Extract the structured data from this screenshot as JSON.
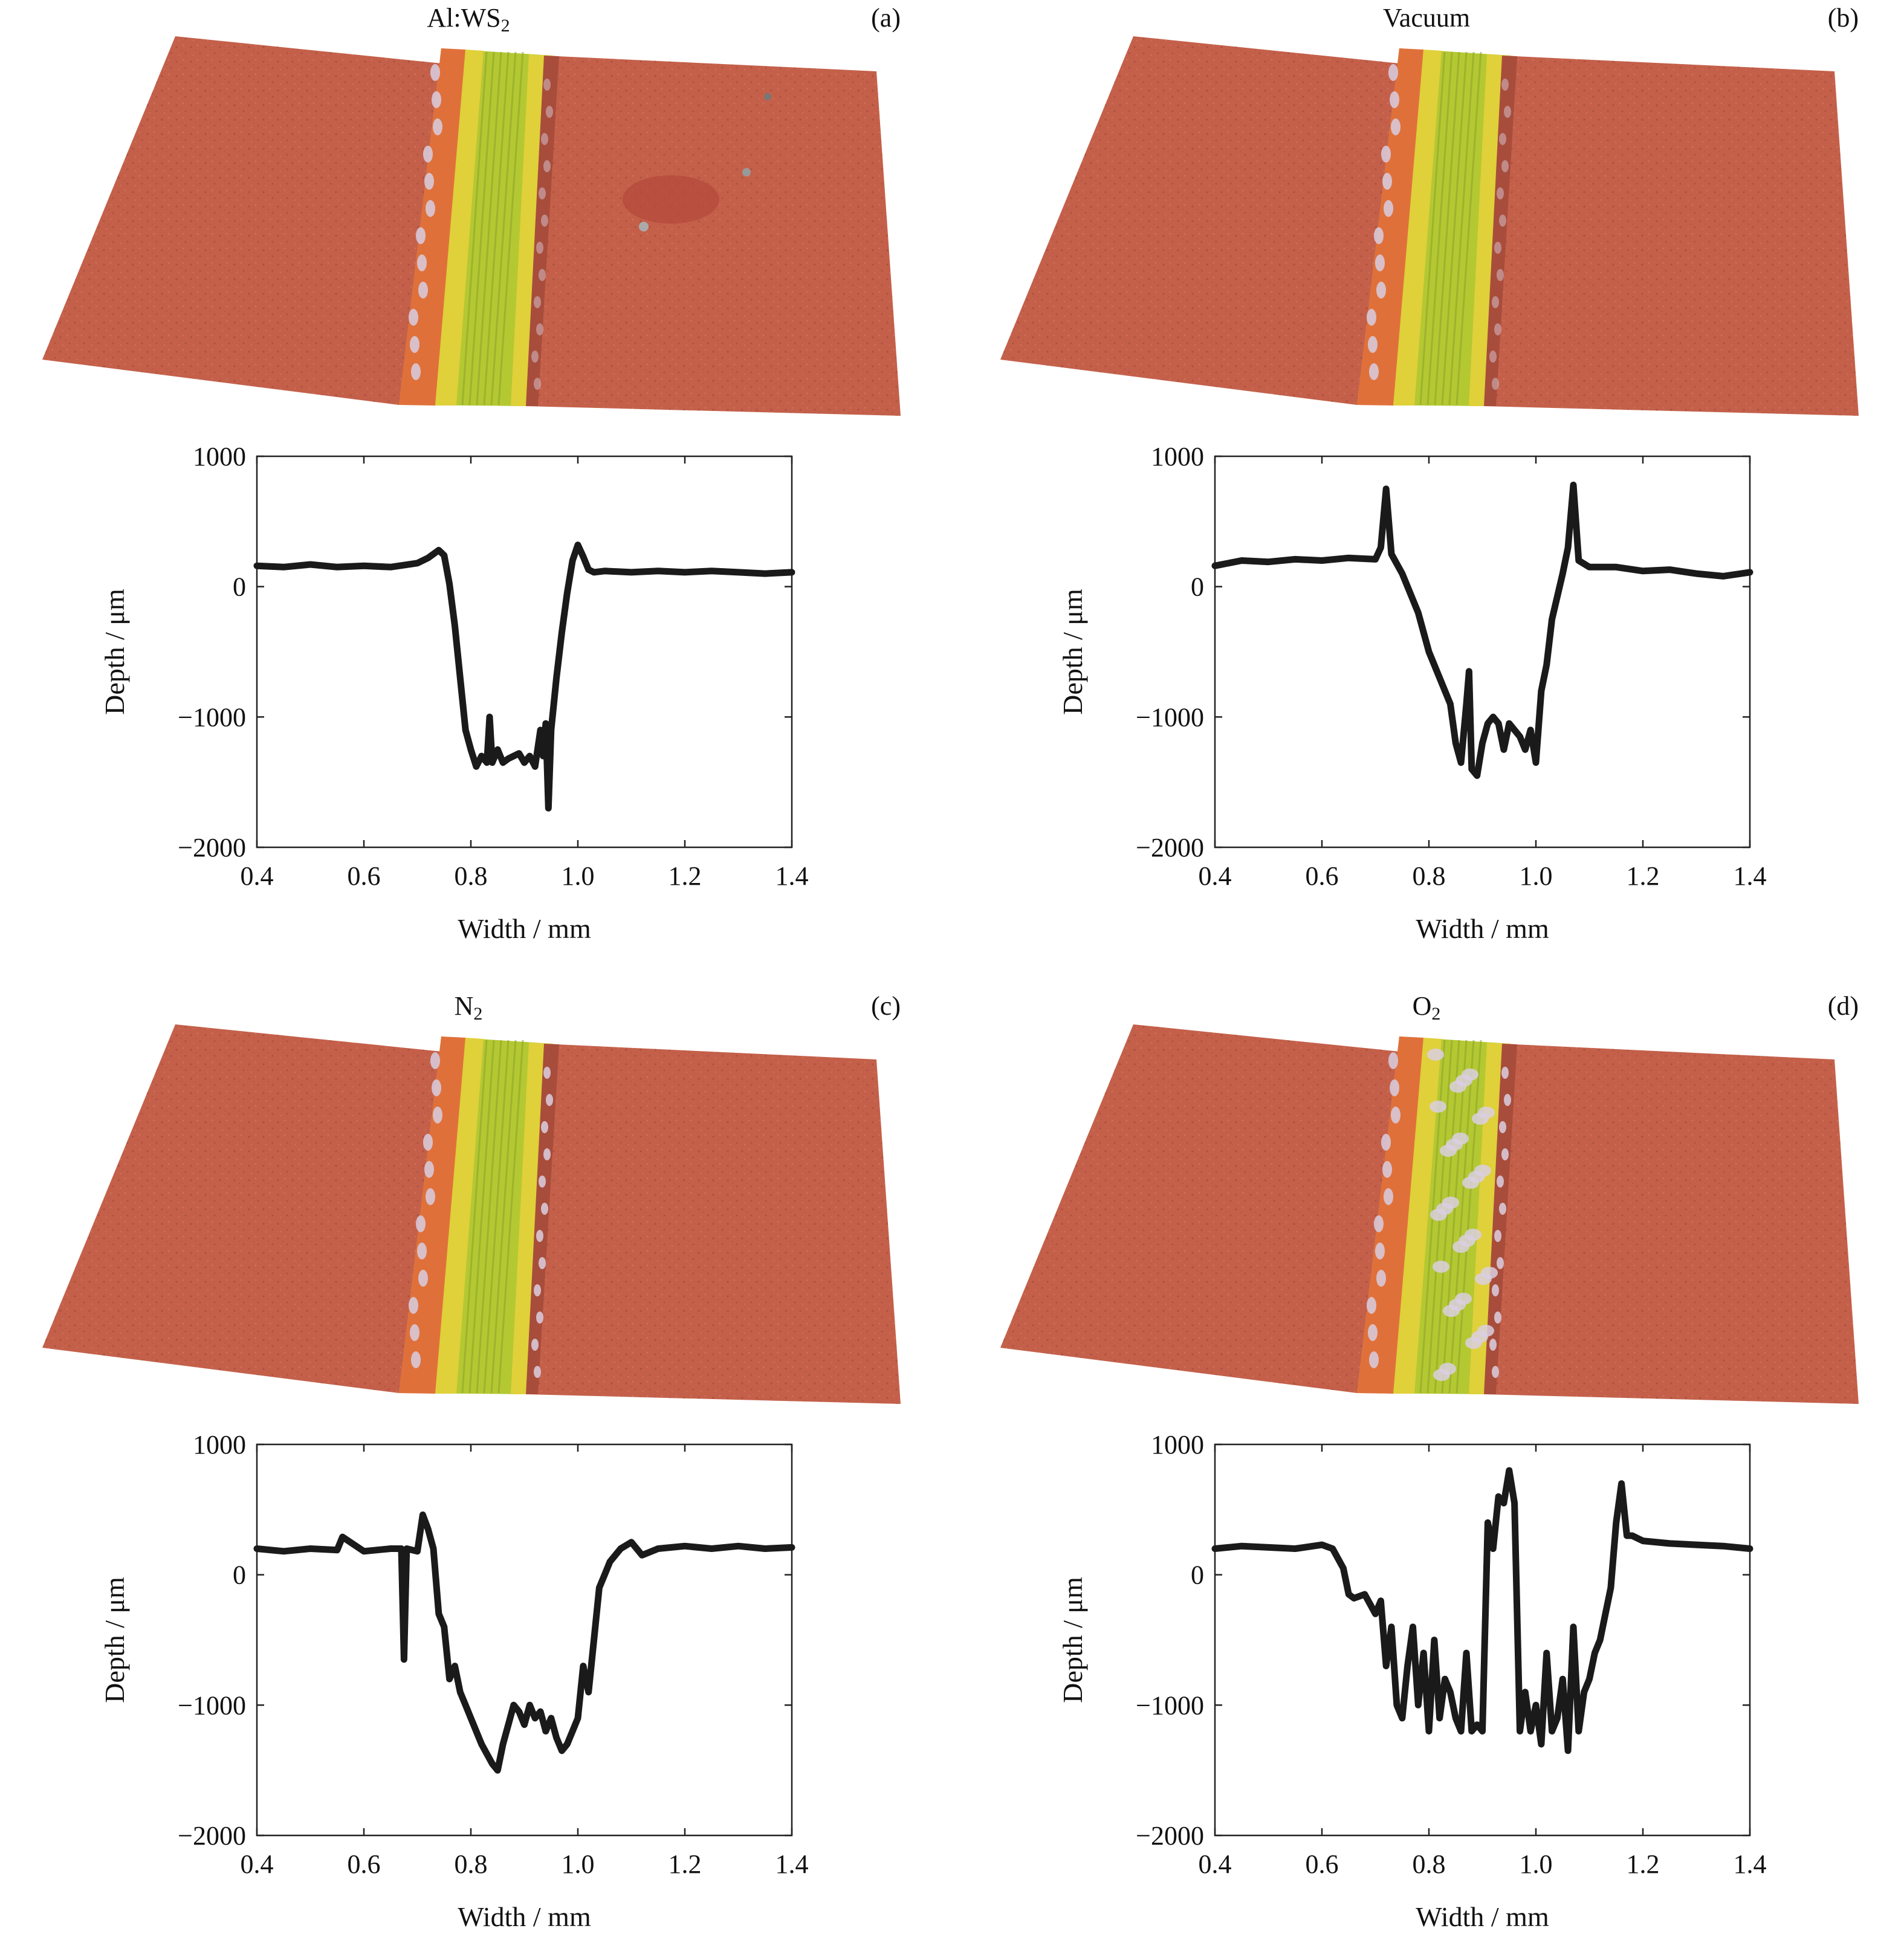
{
  "panels": [
    {
      "id": "a",
      "letter": "(a)",
      "title_main": "Al:WS",
      "title_sub": "2",
      "title_tail": "",
      "surface": {
        "features": "smooth scratch track with a few small dark pits on the right side"
      }
    },
    {
      "id": "b",
      "letter": "(b)",
      "title_main": "Vacuum",
      "title_sub": "",
      "title_tail": "",
      "surface": {
        "features": "scratch track with sharp raised edges and fine surface scratches"
      }
    },
    {
      "id": "c",
      "letter": "(c)",
      "title_main": "N",
      "title_sub": "2",
      "title_tail": "",
      "surface": {
        "features": "wide scratch track with debris along both edges"
      }
    },
    {
      "id": "d",
      "letter": "(d)",
      "title_main": "O",
      "title_sub": "2",
      "title_tail": "",
      "surface": {
        "features": "rough scratch track with heavy white debris and pile-up"
      }
    }
  ],
  "colors": {
    "surface_red": "#c4604a",
    "surface_dark": "#a84d3b",
    "track_green": "#b4c832",
    "track_yellow": "#e0d03a",
    "track_orange": "#e0703a",
    "debris": "#d8c8d8",
    "line": "#1a1a1a"
  },
  "chart_data": [
    {
      "panel": "a",
      "type": "line",
      "xlabel": "Width / mm",
      "ylabel": "Depth / μm",
      "xlim": [
        0.4,
        1.4
      ],
      "ylim": [
        -2000,
        1000
      ],
      "xticks": [
        "0.4",
        "0.6",
        "0.8",
        "1.0",
        "1.2",
        "1.4"
      ],
      "yticks": [
        "1000",
        "0",
        "−1000",
        "−2000"
      ],
      "series": [
        {
          "x": [
            0.4,
            0.45,
            0.5,
            0.55,
            0.6,
            0.65,
            0.7,
            0.72,
            0.74,
            0.75,
            0.76,
            0.77,
            0.78,
            0.79,
            0.8,
            0.81,
            0.82,
            0.83,
            0.835,
            0.84,
            0.85,
            0.86,
            0.87,
            0.88,
            0.89,
            0.9,
            0.91,
            0.92,
            0.93,
            0.935,
            0.94,
            0.945,
            0.95,
            0.96,
            0.97,
            0.98,
            0.99,
            1.0,
            1.01,
            1.02,
            1.03,
            1.05,
            1.1,
            1.15,
            1.2,
            1.25,
            1.3,
            1.35,
            1.4
          ],
          "y": [
            160,
            150,
            170,
            150,
            160,
            150,
            180,
            220,
            280,
            240,
            20,
            -300,
            -700,
            -1100,
            -1250,
            -1380,
            -1300,
            -1350,
            -1000,
            -1350,
            -1250,
            -1350,
            -1320,
            -1300,
            -1280,
            -1350,
            -1300,
            -1380,
            -1100,
            -1300,
            -1050,
            -1700,
            -1100,
            -700,
            -350,
            -50,
            200,
            320,
            230,
            130,
            110,
            120,
            110,
            120,
            110,
            120,
            110,
            100,
            110
          ]
        }
      ]
    },
    {
      "panel": "b",
      "type": "line",
      "xlabel": "Width / mm",
      "ylabel": "Depth / μm",
      "xlim": [
        0.4,
        1.4
      ],
      "ylim": [
        -2000,
        1000
      ],
      "xticks": [
        "0.4",
        "0.6",
        "0.8",
        "1.0",
        "1.2",
        "1.4"
      ],
      "yticks": [
        "1000",
        "0",
        "−1000",
        "−2000"
      ],
      "series": [
        {
          "x": [
            0.4,
            0.45,
            0.5,
            0.55,
            0.6,
            0.65,
            0.7,
            0.71,
            0.72,
            0.73,
            0.75,
            0.78,
            0.8,
            0.82,
            0.84,
            0.85,
            0.86,
            0.87,
            0.875,
            0.88,
            0.89,
            0.9,
            0.91,
            0.92,
            0.93,
            0.94,
            0.95,
            0.96,
            0.97,
            0.98,
            0.99,
            1.0,
            1.01,
            1.02,
            1.03,
            1.05,
            1.06,
            1.07,
            1.08,
            1.1,
            1.15,
            1.2,
            1.25,
            1.3,
            1.35,
            1.4
          ],
          "y": [
            160,
            200,
            190,
            210,
            200,
            220,
            210,
            300,
            750,
            250,
            100,
            -200,
            -500,
            -700,
            -900,
            -1200,
            -1350,
            -900,
            -650,
            -1400,
            -1450,
            -1200,
            -1050,
            -1000,
            -1050,
            -1250,
            -1050,
            -1100,
            -1150,
            -1250,
            -1100,
            -1350,
            -800,
            -600,
            -250,
            100,
            300,
            780,
            200,
            150,
            150,
            120,
            130,
            100,
            80,
            110
          ]
        }
      ]
    },
    {
      "panel": "c",
      "type": "line",
      "xlabel": "Width / mm",
      "ylabel": "Depth / μm",
      "xlim": [
        0.4,
        1.4
      ],
      "ylim": [
        -2000,
        1000
      ],
      "xticks": [
        "0.4",
        "0.6",
        "0.8",
        "1.0",
        "1.2",
        "1.4"
      ],
      "yticks": [
        "1000",
        "0",
        "−1000",
        "−2000"
      ],
      "series": [
        {
          "x": [
            0.4,
            0.45,
            0.5,
            0.55,
            0.56,
            0.6,
            0.65,
            0.67,
            0.675,
            0.68,
            0.7,
            0.71,
            0.72,
            0.73,
            0.74,
            0.75,
            0.76,
            0.77,
            0.78,
            0.79,
            0.8,
            0.82,
            0.84,
            0.85,
            0.86,
            0.87,
            0.88,
            0.89,
            0.9,
            0.91,
            0.92,
            0.93,
            0.94,
            0.95,
            0.96,
            0.97,
            0.98,
            0.99,
            1.0,
            1.01,
            1.02,
            1.03,
            1.04,
            1.05,
            1.06,
            1.08,
            1.1,
            1.12,
            1.15,
            1.2,
            1.25,
            1.3,
            1.35,
            1.4
          ],
          "y": [
            200,
            180,
            200,
            190,
            290,
            180,
            200,
            200,
            -650,
            200,
            180,
            460,
            350,
            200,
            -300,
            -400,
            -800,
            -700,
            -900,
            -1000,
            -1100,
            -1300,
            -1450,
            -1500,
            -1300,
            -1150,
            -1000,
            -1050,
            -1150,
            -1000,
            -1100,
            -1050,
            -1200,
            -1100,
            -1250,
            -1350,
            -1300,
            -1200,
            -1100,
            -700,
            -900,
            -500,
            -100,
            0,
            100,
            200,
            250,
            150,
            200,
            220,
            200,
            220,
            200,
            210
          ]
        }
      ]
    },
    {
      "panel": "d",
      "type": "line",
      "xlabel": "Width / mm",
      "ylabel": "Depth / μm",
      "xlim": [
        0.4,
        1.4
      ],
      "ylim": [
        -2000,
        1000
      ],
      "xticks": [
        "0.4",
        "0.6",
        "0.8",
        "1.0",
        "1.2",
        "1.4"
      ],
      "yticks": [
        "1000",
        "0",
        "−1000",
        "−2000"
      ],
      "series": [
        {
          "x": [
            0.4,
            0.45,
            0.5,
            0.55,
            0.6,
            0.62,
            0.64,
            0.65,
            0.66,
            0.68,
            0.7,
            0.71,
            0.72,
            0.73,
            0.74,
            0.75,
            0.76,
            0.77,
            0.78,
            0.79,
            0.8,
            0.81,
            0.82,
            0.83,
            0.84,
            0.85,
            0.86,
            0.87,
            0.88,
            0.89,
            0.9,
            0.91,
            0.92,
            0.93,
            0.94,
            0.95,
            0.96,
            0.97,
            0.98,
            0.99,
            1.0,
            1.01,
            1.02,
            1.03,
            1.04,
            1.05,
            1.06,
            1.07,
            1.08,
            1.09,
            1.1,
            1.11,
            1.12,
            1.13,
            1.14,
            1.15,
            1.16,
            1.17,
            1.18,
            1.2,
            1.25,
            1.3,
            1.35,
            1.4
          ],
          "y": [
            200,
            220,
            210,
            200,
            230,
            200,
            50,
            -150,
            -180,
            -150,
            -300,
            -200,
            -700,
            -400,
            -1000,
            -1100,
            -700,
            -400,
            -1000,
            -600,
            -1200,
            -500,
            -1100,
            -800,
            -900,
            -1100,
            -1200,
            -600,
            -1200,
            -1150,
            -1200,
            400,
            200,
            600,
            550,
            800,
            550,
            -1200,
            -900,
            -1200,
            -1000,
            -1300,
            -600,
            -1200,
            -1100,
            -800,
            -1350,
            -400,
            -1200,
            -900,
            -800,
            -600,
            -500,
            -300,
            -100,
            400,
            700,
            300,
            300,
            260,
            240,
            230,
            220,
            200
          ]
        }
      ]
    }
  ]
}
